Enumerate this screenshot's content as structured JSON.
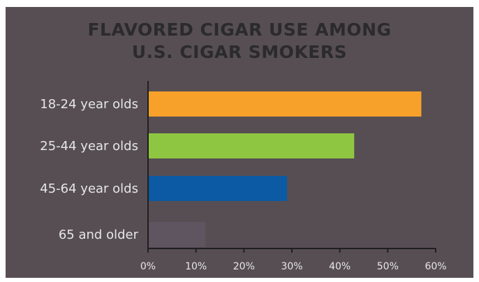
{
  "chart_data": {
    "type": "bar",
    "orientation": "horizontal",
    "title_lines": [
      "FLAVORED CIGAR USE  AMONG",
      "U.S. CIGAR SMOKERS"
    ],
    "categories": [
      "18-24 year olds",
      "25-44 year olds",
      "45-64 year olds",
      "65 and older"
    ],
    "values": [
      57,
      43,
      29,
      12
    ],
    "colors": [
      "#f7a12a",
      "#8ec641",
      "#0b5aa3",
      "#5e5560"
    ],
    "xlim": [
      0,
      60
    ],
    "xticks": [
      "0%",
      "10%",
      "20%",
      "30%",
      "40%",
      "50%",
      "60%"
    ],
    "grid": false,
    "legend": "none"
  },
  "colors": {
    "background": "#574e54",
    "title": "#2b2b2b",
    "axis": "#1f1f1f",
    "text": "#e6e6e6"
  }
}
